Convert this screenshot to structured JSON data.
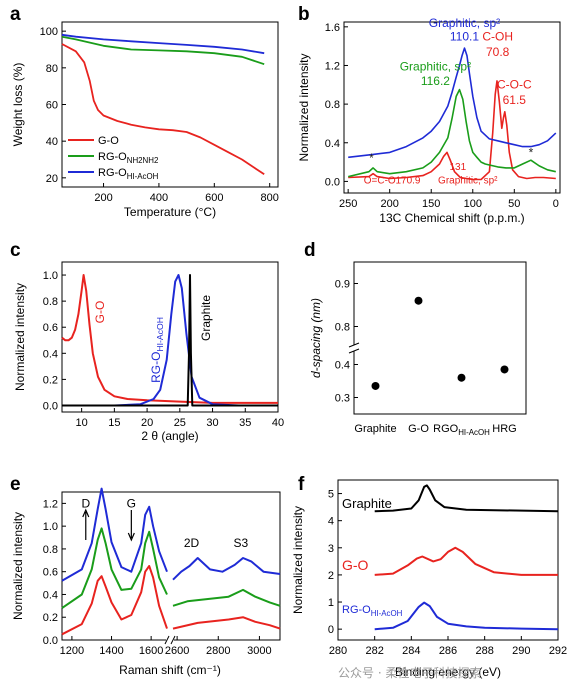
{
  "panels": [
    {
      "letter": "a"
    },
    {
      "letter": "b"
    },
    {
      "letter": "c"
    },
    {
      "letter": "d"
    },
    {
      "letter": "e"
    },
    {
      "letter": "f"
    }
  ],
  "watermark": "公众号 · 柔性电子科技探索",
  "chart_data": [
    {
      "panel": "a",
      "type": "line",
      "xlabel": "Temperature (°C)",
      "ylabel": "Weight loss (%)",
      "xlim": [
        50,
        830
      ],
      "ylim": [
        15,
        105
      ],
      "xticks": [
        200,
        400,
        600,
        800
      ],
      "yticks": [
        20,
        40,
        60,
        80,
        100
      ],
      "legend_position": "lower-left",
      "series": [
        {
          "name": "G-O",
          "color": "#e8231f",
          "x": [
            50,
            100,
            130,
            150,
            165,
            180,
            200,
            250,
            300,
            350,
            400,
            450,
            500,
            550,
            600,
            650,
            700,
            750,
            780
          ],
          "y": [
            93,
            89,
            83,
            73,
            62,
            57,
            54,
            51,
            49,
            47.5,
            46.5,
            46,
            45,
            42,
            38,
            34,
            30,
            25,
            22
          ]
        },
        {
          "name": "RG-O",
          "subscript": "NH2NH2",
          "color": "#1a9d1a",
          "x": [
            50,
            100,
            200,
            300,
            400,
            500,
            600,
            700,
            780
          ],
          "y": [
            97,
            95.5,
            92,
            90,
            89.5,
            89,
            88,
            86,
            82
          ]
        },
        {
          "name": "RG-O",
          "subscript": "HI-AcOH",
          "color": "#1f2bd6",
          "x": [
            50,
            100,
            200,
            300,
            400,
            500,
            600,
            700,
            780
          ],
          "y": [
            98,
            97,
            95.5,
            94.5,
            93.5,
            92.5,
            91.5,
            90,
            88
          ]
        }
      ]
    },
    {
      "panel": "b",
      "type": "line",
      "xlabel": "13C Chemical shift (p.p.m.)",
      "ylabel": "Normalized intensity",
      "xlim": [
        255,
        -5
      ],
      "ylim": [
        -0.12,
        1.65
      ],
      "xticks": [
        250,
        200,
        150,
        100,
        50,
        0
      ],
      "yticks": [
        0.0,
        0.4,
        0.8,
        1.2,
        1.6
      ],
      "series": [
        {
          "name": "",
          "color": "#1f2bd6",
          "x": [
            250,
            220,
            200,
            180,
            160,
            150,
            140,
            130,
            125,
            120,
            116,
            113,
            110,
            107,
            104,
            100,
            95,
            90,
            80,
            70,
            60,
            50,
            40,
            30,
            20,
            10,
            0
          ],
          "y": [
            0.25,
            0.28,
            0.3,
            0.36,
            0.45,
            0.52,
            0.62,
            0.78,
            0.92,
            1.08,
            1.2,
            1.3,
            1.38,
            1.3,
            1.12,
            0.88,
            0.66,
            0.52,
            0.44,
            0.42,
            0.4,
            0.38,
            0.36,
            0.36,
            0.38,
            0.42,
            0.5
          ]
        },
        {
          "name": "",
          "color": "#1a9d1a",
          "x": [
            250,
            225,
            220,
            215,
            200,
            180,
            160,
            150,
            140,
            130,
            125,
            120,
            116,
            112,
            108,
            104,
            100,
            95,
            90,
            85,
            80,
            70,
            60,
            50,
            40,
            30,
            20,
            10,
            0
          ],
          "y": [
            0.05,
            0.1,
            0.14,
            0.1,
            0.08,
            0.1,
            0.14,
            0.2,
            0.3,
            0.45,
            0.65,
            0.88,
            0.95,
            0.85,
            0.62,
            0.42,
            0.3,
            0.25,
            0.2,
            0.18,
            0.17,
            0.15,
            0.14,
            0.14,
            0.18,
            0.22,
            0.16,
            0.12,
            0.1
          ]
        },
        {
          "name": "",
          "color": "#e8231f",
          "x": [
            250,
            225,
            220,
            215,
            200,
            180,
            160,
            150,
            140,
            135,
            131,
            127,
            122,
            115,
            100,
            90,
            80,
            76,
            73,
            70.8,
            68,
            65,
            63,
            61.5,
            59,
            56,
            52,
            45,
            35,
            25,
            15,
            0
          ],
          "y": [
            0.04,
            0.05,
            0.08,
            0.05,
            0.03,
            0.04,
            0.06,
            0.1,
            0.18,
            0.26,
            0.3,
            0.22,
            0.1,
            0.04,
            0.02,
            0.02,
            0.1,
            0.5,
            0.9,
            1.04,
            0.82,
            0.55,
            0.66,
            0.72,
            0.58,
            0.3,
            0.12,
            0.05,
            0.03,
            0.04,
            0.04,
            0.03
          ]
        }
      ],
      "annotations": [
        {
          "text": "Graphitic, sp²",
          "color": "#1f2bd6",
          "x": 110,
          "y": 1.6
        },
        {
          "text": "110.1",
          "color": "#1f2bd6",
          "x": 110,
          "y": 1.46
        },
        {
          "text": "Graphitic, sp²",
          "color": "#1a9d1a",
          "x": 145,
          "y": 1.15
        },
        {
          "text": "116.2",
          "color": "#1a9d1a",
          "x": 145,
          "y": 1.0
        },
        {
          "text": "C-OH",
          "color": "#e8231f",
          "x": 70,
          "y": 1.46
        },
        {
          "text": "70.8",
          "color": "#e8231f",
          "x": 70,
          "y": 1.3
        },
        {
          "text": "C-O-C",
          "color": "#e8231f",
          "x": 50,
          "y": 0.96
        },
        {
          "text": "61.5",
          "color": "#e8231f",
          "x": 50,
          "y": 0.8
        },
        {
          "text": "131",
          "color": "#e8231f",
          "x": 118,
          "y": 0.12
        },
        {
          "text": "Graphitic, sp²",
          "color": "#e8231f",
          "x": 106,
          "y": -0.02
        },
        {
          "text": "O=C-O",
          "color": "#e8231f",
          "x": 212,
          "y": -0.02
        },
        {
          "text": "170.9",
          "color": "#e8231f",
          "x": 178,
          "y": -0.02
        },
        {
          "text": "*",
          "color": "#222222",
          "x": 222,
          "y": 0.2
        },
        {
          "text": "*",
          "color": "#222222",
          "x": 30,
          "y": 0.26
        }
      ]
    },
    {
      "panel": "c",
      "type": "line",
      "xlabel": "2 θ (angle)",
      "ylabel": "Normalized intensity",
      "xlim": [
        7,
        40
      ],
      "ylim": [
        -0.05,
        1.1
      ],
      "xticks": [
        10,
        15,
        20,
        25,
        30,
        35,
        40
      ],
      "yticks": [
        0.0,
        0.2,
        0.4,
        0.6,
        0.8,
        1.0
      ],
      "series": [
        {
          "name": "G-O",
          "color": "#e8231f",
          "x": [
            7,
            7.5,
            8,
            8.5,
            9,
            9.5,
            10,
            10.3,
            10.7,
            11.2,
            11.7,
            12.5,
            13.5,
            15,
            17,
            20,
            25,
            30,
            35,
            40
          ],
          "y": [
            0.52,
            0.5,
            0.5,
            0.52,
            0.58,
            0.7,
            0.88,
            1.0,
            0.88,
            0.62,
            0.4,
            0.22,
            0.12,
            0.07,
            0.05,
            0.04,
            0.03,
            0.02,
            0.02,
            0.02
          ]
        },
        {
          "name": "RG-O",
          "subscript": "HI-AcOH",
          "color": "#1f2bd6",
          "x": [
            7,
            15,
            19,
            21,
            22,
            23,
            23.7,
            24.3,
            24.8,
            25.3,
            26,
            26.8,
            28,
            30,
            34,
            40
          ],
          "y": [
            0.0,
            0.0,
            0.01,
            0.05,
            0.12,
            0.35,
            0.7,
            0.95,
            1.0,
            0.9,
            0.55,
            0.22,
            0.06,
            0.01,
            0.0,
            0.0
          ]
        },
        {
          "name": "Graphite",
          "color": "#000000",
          "x": [
            7,
            26.2,
            26.4,
            26.55,
            26.7,
            26.9,
            40
          ],
          "y": [
            0.0,
            0.0,
            0.4,
            1.0,
            0.4,
            0.0,
            0.0
          ]
        }
      ]
    },
    {
      "panel": "d",
      "type": "scatter",
      "ylabel": "d-spacing (nm)",
      "categories": [
        "Graphite",
        "G-O",
        "RGO",
        "HRG"
      ],
      "category_subscripts": [
        "",
        "",
        "HI-AcOH",
        ""
      ],
      "values": [
        0.335,
        0.86,
        0.36,
        0.385
      ],
      "yticks": [
        0.3,
        0.4,
        0.8,
        0.9
      ],
      "axis_break": [
        0.45,
        0.75
      ]
    },
    {
      "panel": "e",
      "type": "line",
      "xlabel": "Raman shift (cm⁻¹)",
      "ylabel": "Normalized intensity",
      "xlim": [
        1150,
        3100
      ],
      "ylim": [
        0,
        1.3
      ],
      "xticks": [
        1200,
        1400,
        1600,
        2600,
        2800,
        3000
      ],
      "yticks": [
        0.0,
        0.2,
        0.4,
        0.6,
        0.8,
        1.0,
        1.2
      ],
      "axis_break": [
        1680,
        2580
      ],
      "series": [
        {
          "name": "",
          "color": "#1f2bd6",
          "x": [
            1150,
            1250,
            1300,
            1330,
            1350,
            1370,
            1400,
            1450,
            1500,
            1550,
            1570,
            1590,
            1610,
            1640,
            1680,
            2580,
            2620,
            2660,
            2700,
            2760,
            2820,
            2880,
            2920,
            2960,
            3020,
            3100
          ],
          "y": [
            0.52,
            0.62,
            0.85,
            1.15,
            1.33,
            1.15,
            0.86,
            0.64,
            0.6,
            0.85,
            1.1,
            1.17,
            1.0,
            0.78,
            0.6,
            0.53,
            0.6,
            0.65,
            0.72,
            0.62,
            0.6,
            0.66,
            0.72,
            0.69,
            0.6,
            0.58
          ]
        },
        {
          "name": "",
          "color": "#1a9d1a",
          "x": [
            1150,
            1250,
            1300,
            1330,
            1350,
            1370,
            1400,
            1450,
            1500,
            1550,
            1570,
            1590,
            1610,
            1640,
            1680,
            2580,
            2650,
            2750,
            2850,
            2920,
            2980,
            3050,
            3100
          ],
          "y": [
            0.28,
            0.4,
            0.62,
            0.88,
            0.98,
            0.85,
            0.62,
            0.44,
            0.45,
            0.62,
            0.85,
            0.95,
            0.8,
            0.55,
            0.4,
            0.3,
            0.34,
            0.36,
            0.38,
            0.44,
            0.38,
            0.33,
            0.3
          ]
        },
        {
          "name": "",
          "color": "#e8231f",
          "x": [
            1150,
            1250,
            1300,
            1330,
            1350,
            1370,
            1400,
            1450,
            1500,
            1550,
            1570,
            1590,
            1610,
            1640,
            1680,
            2580,
            2700,
            2800,
            2850,
            2920,
            2980,
            3050,
            3100
          ],
          "y": [
            0.05,
            0.14,
            0.32,
            0.52,
            0.56,
            0.47,
            0.33,
            0.18,
            0.22,
            0.42,
            0.6,
            0.65,
            0.55,
            0.3,
            0.1,
            0.1,
            0.15,
            0.17,
            0.18,
            0.2,
            0.16,
            0.13,
            0.1
          ]
        }
      ],
      "annotations": [
        {
          "text": "D",
          "x": 1270,
          "y": 1.2
        },
        {
          "text": "G",
          "x": 1500,
          "y": 1.2
        },
        {
          "text": "2D",
          "x": 2670,
          "y": 0.85
        },
        {
          "text": "S3",
          "x": 2910,
          "y": 0.85
        }
      ]
    },
    {
      "panel": "f",
      "type": "line",
      "xlabel": "Binding energy (eV)",
      "ylabel": "Normalized intensity",
      "xlim": [
        280,
        292
      ],
      "ylim": [
        -0.4,
        5.5
      ],
      "xticks": [
        280,
        282,
        284,
        286,
        288,
        290,
        292
      ],
      "yticks": [
        0,
        1,
        2,
        3,
        4,
        5
      ],
      "series": [
        {
          "name": "Graphite",
          "color": "#000000",
          "x": [
            282,
            283,
            284,
            284.4,
            284.7,
            284.85,
            285,
            285.3,
            285.8,
            287,
            292
          ],
          "y": [
            4.35,
            4.37,
            4.45,
            4.75,
            5.25,
            5.3,
            5.15,
            4.75,
            4.5,
            4.4,
            4.35
          ]
        },
        {
          "name": "G-O",
          "color": "#e8231f",
          "x": [
            282,
            283,
            283.8,
            284.3,
            284.6,
            285.2,
            285.6,
            286,
            286.4,
            286.8,
            287.5,
            288.5,
            290,
            292
          ],
          "y": [
            2.0,
            2.05,
            2.35,
            2.6,
            2.68,
            2.5,
            2.58,
            2.85,
            3.0,
            2.85,
            2.4,
            2.1,
            2.0,
            2.0
          ]
        },
        {
          "name": "RG-O",
          "subscript": "HI-AcOH",
          "color": "#1f2bd6",
          "x": [
            282,
            283,
            283.8,
            284.4,
            284.7,
            285,
            285.4,
            286,
            287,
            288,
            290,
            292
          ],
          "y": [
            0.0,
            0.05,
            0.3,
            0.82,
            0.98,
            0.85,
            0.45,
            0.2,
            0.1,
            0.05,
            0.02,
            0.0
          ]
        }
      ]
    }
  ]
}
